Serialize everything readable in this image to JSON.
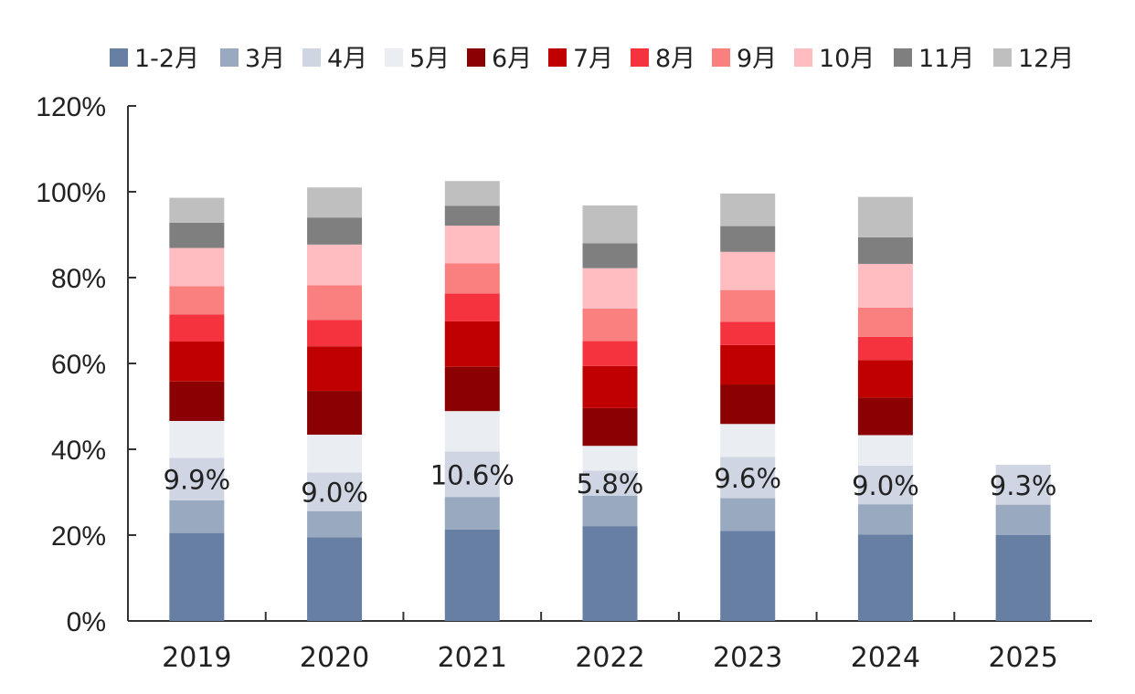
{
  "chart_data": {
    "type": "bar",
    "stacked": true,
    "categories": [
      "2019",
      "2020",
      "2021",
      "2022",
      "2023",
      "2024",
      "2025"
    ],
    "ylim": [
      0,
      120
    ],
    "yticks": [
      0,
      20,
      40,
      60,
      80,
      100,
      120
    ],
    "ytick_suffix": "%",
    "grid": false,
    "legend_position": "top",
    "series": [
      {
        "name": "1-2月",
        "color": "#667fa2",
        "values": [
          20.5,
          19.5,
          21.3,
          22.1,
          21.0,
          20.1,
          20.0
        ]
      },
      {
        "name": "3月",
        "color": "#98a9c0",
        "values": [
          7.6,
          6.1,
          7.6,
          7.1,
          7.6,
          7.1,
          7.1
        ]
      },
      {
        "name": "4月",
        "color": "#cfd5e2",
        "values": [
          9.9,
          9.0,
          10.6,
          5.8,
          9.6,
          9.0,
          9.3
        ]
      },
      {
        "name": "5月",
        "color": "#eaedf1",
        "values": [
          8.6,
          8.8,
          9.4,
          5.8,
          7.7,
          7.1,
          null
        ]
      },
      {
        "name": "6月",
        "color": "#8b0000",
        "values": [
          9.2,
          10.2,
          10.3,
          8.8,
          9.2,
          8.7,
          null
        ]
      },
      {
        "name": "7月",
        "color": "#c00000",
        "values": [
          9.3,
          10.4,
          10.6,
          9.8,
          9.2,
          8.8,
          null
        ]
      },
      {
        "name": "8月",
        "color": "#f5333f",
        "values": [
          6.3,
          6.1,
          6.5,
          5.8,
          5.4,
          5.4,
          null
        ]
      },
      {
        "name": "9月",
        "color": "#fa7f7f",
        "values": [
          6.6,
          8.1,
          7.0,
          7.6,
          7.4,
          6.8,
          null
        ]
      },
      {
        "name": "10月",
        "color": "#ffbcc1",
        "values": [
          8.9,
          9.5,
          8.8,
          9.4,
          8.9,
          10.2,
          null
        ]
      },
      {
        "name": "11月",
        "color": "#7f7f7f",
        "values": [
          5.9,
          6.3,
          4.6,
          5.8,
          6.0,
          6.2,
          null
        ]
      },
      {
        "name": "12月",
        "color": "#bfbfbf",
        "values": [
          5.8,
          7.0,
          5.8,
          8.8,
          7.6,
          9.4,
          null
        ]
      }
    ],
    "annotations": [
      {
        "category": "2019",
        "text": "9.9%"
      },
      {
        "category": "2020",
        "text": "9.0%"
      },
      {
        "category": "2021",
        "text": "10.6%"
      },
      {
        "category": "2022",
        "text": "5.8%"
      },
      {
        "category": "2023",
        "text": "9.6%"
      },
      {
        "category": "2024",
        "text": "9.0%"
      },
      {
        "category": "2025",
        "text": "9.3%"
      }
    ]
  }
}
